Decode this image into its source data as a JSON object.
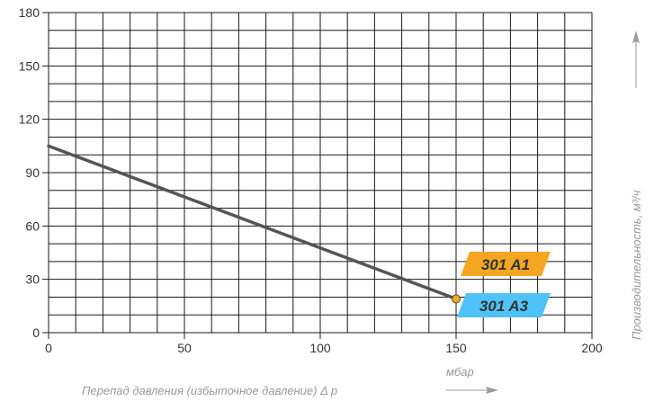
{
  "chart_data": {
    "type": "line",
    "xlabel": "Перепад давления (избыточное давление) Δ p",
    "xunit": "мбар",
    "ylabel": "Производительность, м³/ч",
    "xlim": [
      0,
      200
    ],
    "ylim": [
      0,
      180
    ],
    "xticks": [
      0,
      50,
      100,
      150,
      200
    ],
    "yticks": [
      0,
      30,
      60,
      90,
      120,
      150,
      180
    ],
    "grid": true,
    "series": [
      {
        "x": [
          0,
          150
        ],
        "y": [
          105,
          19
        ],
        "color": "#555555",
        "end_marker_color": "#f5a623"
      }
    ],
    "labels": [
      {
        "text": "301 A1",
        "color": "#f5a623"
      },
      {
        "text": "301 A3",
        "color": "#4fc3f7"
      }
    ]
  }
}
